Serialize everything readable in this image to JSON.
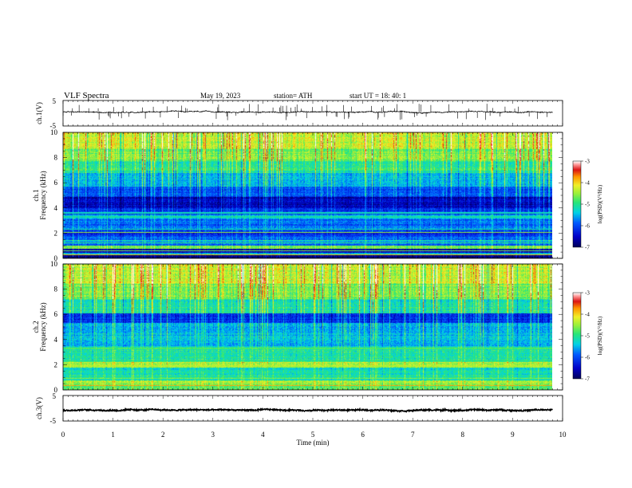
{
  "header": {
    "title": "VLF  Spectra",
    "date": "May 19, 2023",
    "station": "station= ATH",
    "start": "start  UT  =    18: 40: 1"
  },
  "chart_data": [
    {
      "type": "line",
      "name": "ch1-waveform",
      "ylabel": "ch.1(V)",
      "ylim": [
        -5,
        5
      ],
      "yticks": [
        "5",
        "-5"
      ],
      "xlim": [
        0,
        9.8
      ],
      "baseline_volts": 0.5,
      "noise_volts": 0.35,
      "spike_volts": 2.5
    },
    {
      "type": "heatmap",
      "name": "ch1-spectrogram",
      "ylabel_top": "ch.1",
      "ylabel": "Frequency  (kHz)",
      "ylim": [
        0,
        10
      ],
      "yticks": [
        "0",
        "2",
        "4",
        "6",
        "8",
        "10"
      ],
      "xlim": [
        0,
        9.8
      ],
      "colorbar": {
        "label": "log(PSD)(V²/Hz)",
        "ticks": [
          "-3",
          "-4",
          "-5",
          "-6",
          "-7"
        ],
        "range": [
          -7,
          -3
        ]
      },
      "bands": [
        {
          "f0": 0.0,
          "f1": 0.25,
          "level": -6.9
        },
        {
          "f0": 0.25,
          "f1": 0.45,
          "level": -5.4
        },
        {
          "f0": 0.45,
          "f1": 0.75,
          "level": -6.6
        },
        {
          "f0": 0.75,
          "f1": 1.0,
          "level": -4.7
        },
        {
          "f0": 1.0,
          "f1": 1.3,
          "level": -5.8
        },
        {
          "f0": 1.3,
          "f1": 1.45,
          "level": -5.3
        },
        {
          "f0": 1.45,
          "f1": 1.75,
          "level": -5.9
        },
        {
          "f0": 1.75,
          "f1": 2.3,
          "level": -6.2
        },
        {
          "f0": 2.3,
          "f1": 2.5,
          "level": -5.6
        },
        {
          "f0": 2.5,
          "f1": 3.1,
          "level": -5.9
        },
        {
          "f0": 3.1,
          "f1": 3.5,
          "level": -5.6
        },
        {
          "f0": 3.5,
          "f1": 4.0,
          "level": -6.1
        },
        {
          "f0": 4.0,
          "f1": 4.9,
          "level": -6.6
        },
        {
          "f0": 4.9,
          "f1": 5.7,
          "level": -6.0
        },
        {
          "f0": 5.7,
          "f1": 6.8,
          "level": -5.4
        },
        {
          "f0": 6.8,
          "f1": 7.7,
          "level": -5.0
        },
        {
          "f0": 7.7,
          "f1": 8.7,
          "level": -4.6
        },
        {
          "f0": 8.7,
          "f1": 10.0,
          "level": -4.3
        }
      ],
      "lines": [
        {
          "f": 0.3,
          "level": -3.9
        },
        {
          "f": 0.6,
          "level": -4.6
        },
        {
          "f": 1.25,
          "level": -5.0
        },
        {
          "f": 2.05,
          "level": -4.5
        },
        {
          "f": 2.3,
          "level": -5.1
        },
        {
          "f": 3.3,
          "level": -5.1
        },
        {
          "f": 3.6,
          "level": -5.2
        }
      ]
    },
    {
      "type": "heatmap",
      "name": "ch2-spectrogram",
      "ylabel_top": "ch.2",
      "ylabel": "Frequency  (kHz)",
      "ylim": [
        0,
        10
      ],
      "yticks": [
        "0",
        "2",
        "4",
        "6",
        "8",
        "10"
      ],
      "xlim": [
        0,
        9.8
      ],
      "colorbar": {
        "label": "log(PSD)(V²/Hz)",
        "ticks": [
          "-3",
          "-4",
          "-5",
          "-6",
          "-7"
        ],
        "range": [
          -7,
          -3
        ]
      },
      "bands": [
        {
          "f0": 0.0,
          "f1": 0.3,
          "level": -4.8
        },
        {
          "f0": 0.3,
          "f1": 0.75,
          "level": -4.5
        },
        {
          "f0": 0.75,
          "f1": 1.2,
          "level": -5.1
        },
        {
          "f0": 1.2,
          "f1": 1.8,
          "level": -5.2
        },
        {
          "f0": 1.8,
          "f1": 2.2,
          "level": -4.4
        },
        {
          "f0": 2.2,
          "f1": 3.4,
          "level": -5.1
        },
        {
          "f0": 3.4,
          "f1": 4.0,
          "level": -5.5
        },
        {
          "f0": 4.0,
          "f1": 5.3,
          "level": -5.5
        },
        {
          "f0": 5.3,
          "f1": 6.1,
          "level": -6.2
        },
        {
          "f0": 6.1,
          "f1": 7.2,
          "level": -5.1
        },
        {
          "f0": 7.2,
          "f1": 8.4,
          "level": -4.6
        },
        {
          "f0": 8.4,
          "f1": 10.0,
          "level": -4.3
        }
      ],
      "lines": [
        {
          "f": 0.35,
          "level": -3.8
        },
        {
          "f": 0.9,
          "level": -4.6
        },
        {
          "f": 1.9,
          "level": -4.4
        },
        {
          "f": 2.3,
          "level": -4.9
        },
        {
          "f": 3.3,
          "level": -4.8
        }
      ]
    },
    {
      "type": "line",
      "name": "ch3-waveform",
      "ylabel": "ch.3(V)",
      "ylim": [
        -5,
        5
      ],
      "yticks": [
        "5",
        "-5"
      ],
      "xlim": [
        0,
        9.8
      ],
      "baseline_volts": -0.7,
      "noise_volts": 0.45
    }
  ],
  "xaxis": {
    "label": "Time  (min)",
    "ticks": [
      0,
      1,
      2,
      3,
      4,
      5,
      6,
      7,
      8,
      9,
      10
    ],
    "range": [
      0,
      10
    ]
  }
}
